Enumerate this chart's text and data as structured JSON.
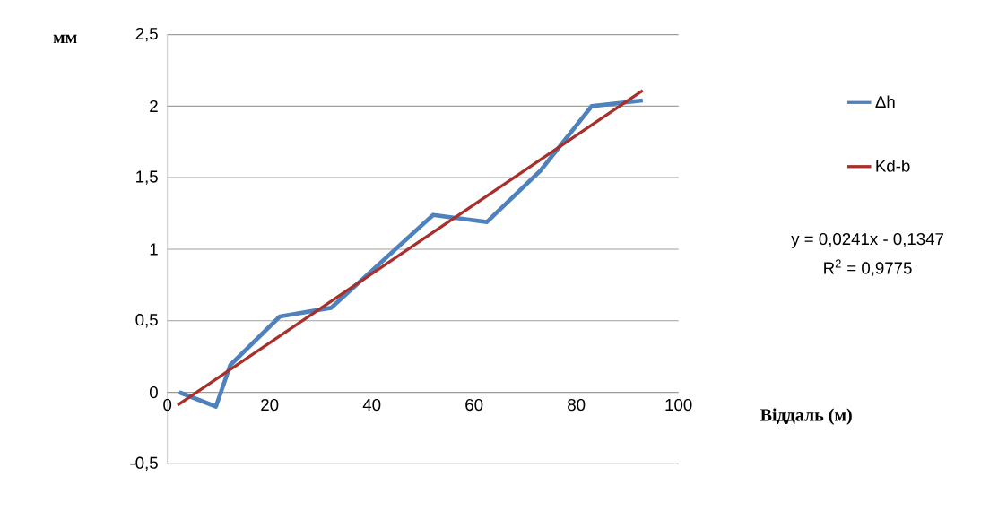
{
  "chart_data": {
    "type": "line",
    "xlabel": "Віддаль (м)",
    "ylabel": "мм",
    "series": [
      {
        "name": "Δh",
        "color": "#4f81bd",
        "x": [
          2.3,
          9.5,
          12.3,
          22,
          32,
          52,
          62.5,
          73,
          83,
          93
        ],
        "values": [
          0,
          -0.1,
          0.19,
          0.53,
          0.59,
          1.24,
          1.19,
          1.55,
          2.0,
          2.04
        ]
      },
      {
        "name": "Kd-b",
        "type": "line",
        "color": "#a6302b",
        "x": [
          2,
          93
        ],
        "values": [
          -0.09,
          2.11
        ]
      }
    ],
    "xlim": [
      0,
      100
    ],
    "ylim": [
      -0.5,
      2.5
    ],
    "xticks": [
      0,
      20,
      40,
      60,
      80,
      100
    ],
    "yticks": [
      {
        "value": -0.5,
        "label": "-0,5"
      },
      0,
      {
        "value": 0.5,
        "label": "0,5"
      },
      1,
      {
        "value": 1.5,
        "label": "1,5"
      },
      2,
      {
        "value": 2.5,
        "label": "2,5"
      }
    ],
    "grid": "y",
    "legend": "right",
    "annotations": [
      "y = 0,0241x - 0,1347",
      "R$^{2}$ = 0,9775"
    ]
  }
}
